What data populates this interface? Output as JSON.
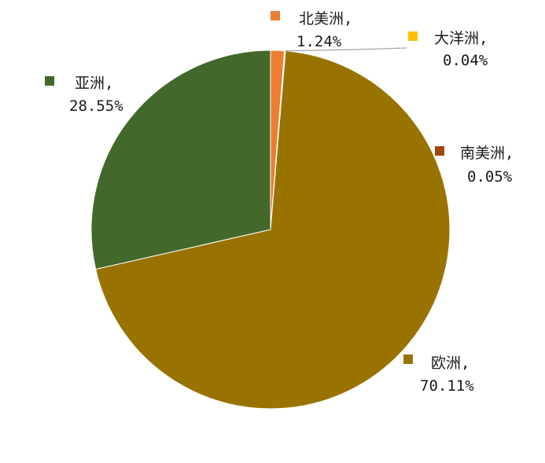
{
  "chart_data": {
    "type": "pie",
    "title": "",
    "slices": [
      {
        "name": "北美洲",
        "value": 1.24,
        "label": "1.24%",
        "color": "#ED7D31"
      },
      {
        "name": "大洋洲",
        "value": 0.04,
        "label": "0.04%",
        "color": "#FFC000"
      },
      {
        "name": "南美洲",
        "value": 0.05,
        "label": "0.05%",
        "color": "#9E480E"
      },
      {
        "name": "欧洲",
        "value": 70.11,
        "label": "70.11%",
        "color": "#997300"
      },
      {
        "name": "亚洲",
        "value": 28.55,
        "label": "28.55%",
        "color": "#43682B"
      }
    ],
    "legend": "none"
  }
}
